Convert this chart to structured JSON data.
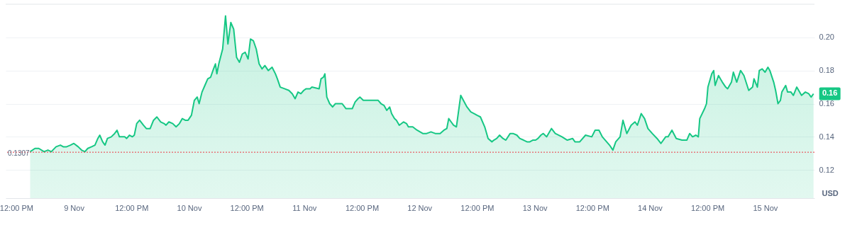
{
  "chart_data": {
    "type": "area",
    "ylabel": "USD",
    "grid": "y",
    "xlim": [
      "--11-08T09:48",
      "--11-15T10:18"
    ],
    "ylim": [
      0.103,
      0.22
    ],
    "xticks": [
      {
        "value": "--11-08T12:00",
        "label": "12:00 PM"
      },
      {
        "value": "--11-09",
        "label": "9 Nov"
      },
      {
        "value": "--11-09T12:00",
        "label": "12:00 PM"
      },
      {
        "value": "--11-10",
        "label": "10 Nov"
      },
      {
        "value": "--11-10T12:00",
        "label": "12:00 PM"
      },
      {
        "value": "--11-11",
        "label": "11 Nov"
      },
      {
        "value": "--11-11T12:00",
        "label": "12:00 PM"
      },
      {
        "value": "--11-12",
        "label": "12 Nov"
      },
      {
        "value": "--11-12T12:00",
        "label": "12:00 PM"
      },
      {
        "value": "--11-13",
        "label": "13 Nov"
      },
      {
        "value": "--11-13T12:00",
        "label": "12:00 PM"
      },
      {
        "value": "--11-14",
        "label": "14 Nov"
      },
      {
        "value": "--11-14T12:00",
        "label": "12:00 PM"
      },
      {
        "value": "--11-15",
        "label": "15 Nov"
      }
    ],
    "yticks": [
      0.12,
      0.14,
      0.16,
      0.18,
      {
        "value": 0.2,
        "label": "0.20"
      }
    ],
    "ref_lines": [
      {
        "axis": "y",
        "value": 0.1307,
        "label": "0.1307",
        "color": "#ea3943",
        "line_style": "dotted"
      }
    ],
    "annotations": [
      {
        "text": "0.16",
        "x": "--11-15T10:06",
        "y": 0.166
      }
    ],
    "series": [
      {
        "color": "#16c784",
        "x": [
          "--11-08T14:54",
          "--11-08T15:54",
          "--11-08T16:42",
          "--11-08T17:48",
          "--11-08T18:36",
          "--11-08T19:18",
          "--11-08T20:18",
          "--11-08T21:12",
          "--11-08T21:48",
          "--11-08T22:30",
          "--11-08T23:18",
          "--11-09T00:00",
          "--11-09T00:54",
          "--11-09T01:36",
          "--11-09T02:18",
          "--11-09T02:54",
          "--11-09T03:42",
          "--11-09T04:24",
          "--11-09T05:00",
          "--11-09T05:24",
          "--11-09T06:00",
          "--11-09T06:30",
          "--11-09T07:00",
          "--11-09T07:48",
          "--11-09T08:30",
          "--11-09T09:00",
          "--11-09T09:30",
          "--11-09T10:36",
          "--11-09T11:00",
          "--11-09T11:36",
          "--11-09T12:12",
          "--11-09T12:36",
          "--11-09T13:06",
          "--11-09T13:42",
          "--11-09T14:30",
          "--11-09T15:06",
          "--11-09T15:54",
          "--11-09T16:36",
          "--11-09T17:18",
          "--11-09T18:06",
          "--11-09T18:48",
          "--11-09T19:12",
          "--11-09T19:48",
          "--11-09T20:36",
          "--11-09T21:18",
          "--11-09T22:00",
          "--11-09T22:36",
          "--11-09T23:12",
          "--11-09T23:48",
          "--11-10T00:30",
          "--11-10T01:06",
          "--11-10T01:42",
          "--11-10T02:06",
          "--11-10T02:42",
          "--11-10T03:18",
          "--11-10T03:54",
          "--11-10T04:30",
          "--11-10T05:06",
          "--11-10T05:30",
          "--11-10T05:48",
          "--11-10T06:12",
          "--11-10T07:00",
          "--11-10T07:36",
          "--11-10T08:06",
          "--11-10T08:42",
          "--11-10T09:18",
          "--11-10T09:54",
          "--11-10T10:30",
          "--11-10T11:06",
          "--11-10T11:42",
          "--11-10T12:18",
          "--11-10T12:48",
          "--11-10T13:24",
          "--11-10T14:00",
          "--11-10T14:36",
          "--11-10T15:12",
          "--11-10T15:48",
          "--11-10T16:30",
          "--11-10T17:18",
          "--11-10T18:00",
          "--11-10T18:24",
          "--11-10T19:00",
          "--11-10T19:54",
          "--11-10T20:48",
          "--11-10T21:30",
          "--11-10T22:06",
          "--11-10T22:42",
          "--11-10T23:18",
          "--11-10T23:54",
          "--11-11T00:24",
          "--11-11T01:12",
          "--11-11T01:36",
          "--11-11T03:06",
          "--11-11T03:30",
          "--11-11T04:00",
          "--11-11T04:18",
          "--11-11T04:42",
          "--11-11T05:18",
          "--11-11T05:54",
          "--11-11T06:30",
          "--11-11T07:12",
          "--11-11T07:54",
          "--11-11T08:42",
          "--11-11T09:24",
          "--11-11T10:00",
          "--11-11T10:36",
          "--11-11T11:12",
          "--11-11T11:36",
          "--11-11T12:18",
          "--11-11T13:12",
          "--11-11T14:06",
          "--11-11T14:48",
          "--11-11T15:24",
          "--11-11T16:00",
          "--11-11T16:36",
          "--11-11T17:12",
          "--11-11T17:48",
          "--11-11T18:12",
          "--11-11T18:48",
          "--11-11T19:12",
          "--11-11T19:48",
          "--11-11T20:42",
          "--11-11T21:18",
          "--11-11T21:42",
          "--11-11T22:36",
          "--11-11T23:30",
          "--11-12T00:42",
          "--11-12T01:30",
          "--11-12T02:24",
          "--11-12T03:18",
          "--11-12T04:18",
          "--11-12T05:06",
          "--11-12T05:42",
          "--11-12T06:06",
          "--11-12T06:36",
          "--11-12T07:06",
          "--11-12T07:42",
          "--11-12T08:36",
          "--11-12T09:54",
          "--11-12T10:42",
          "--11-12T11:24",
          "--11-12T12:00",
          "--11-12T12:42",
          "--11-12T13:36",
          "--11-12T14:18",
          "--11-12T15:06",
          "--11-12T15:30",
          "--11-12T16:06",
          "--11-12T16:42",
          "--11-12T17:24",
          "--11-12T18:00",
          "--11-12T18:54",
          "--11-12T19:30",
          "--11-12T20:18",
          "--11-12T20:54",
          "--11-12T21:42",
          "--11-12T22:24",
          "--11-12T23:00",
          "--11-12T23:36",
          "--11-13T00:12",
          "--11-13T00:42",
          "--11-13T01:18",
          "--11-13T01:48",
          "--11-13T02:30",
          "--11-13T03:30",
          "--11-13T04:18",
          "--11-13T05:42",
          "--11-13T06:48",
          "--11-13T07:54",
          "--11-13T08:24",
          "--11-13T09:24",
          "--11-13T10:36",
          "--11-13T11:54",
          "--11-13T12:36",
          "--11-13T13:24",
          "--11-13T14:06",
          "--11-13T15:36",
          "--11-13T16:18",
          "--11-13T16:54",
          "--11-13T17:48",
          "--11-13T18:24",
          "--11-13T19:12",
          "--11-13T20:06",
          "--11-13T20:54",
          "--11-13T21:24",
          "--11-13T22:12",
          "--11-13T22:54",
          "--11-13T23:36",
          "--11-14T00:30",
          "--11-14T01:30",
          "--11-14T02:18",
          "--11-14T03:18",
          "--11-14T03:48",
          "--11-14T04:36",
          "--11-14T05:30",
          "--11-14T06:42",
          "--11-14T07:42",
          "--11-14T08:18",
          "--11-14T08:54",
          "--11-14T09:36",
          "--11-14T10:06",
          "--11-14T10:24",
          "--11-14T11:24",
          "--11-14T11:48",
          "--11-14T12:06",
          "--11-14T12:54",
          "--11-14T13:18",
          "--11-14T13:36",
          "--11-14T14:18",
          "--11-14T15:06",
          "--11-14T15:48",
          "--11-14T16:12",
          "--11-14T17:00",
          "--11-14T17:24",
          "--11-14T18:06",
          "--11-14T18:54",
          "--11-14T19:36",
          "--11-14T20:36",
          "--11-14T21:24",
          "--11-14T21:42",
          "--11-14T22:24",
          "--11-14T22:48",
          "--11-14T23:24",
          "--11-15T00:00",
          "--11-15T00:36",
          "--11-15T01:00",
          "--11-15T01:48",
          "--11-15T02:12",
          "--11-15T02:42",
          "--11-15T03:12",
          "--11-15T03:30",
          "--11-15T04:18",
          "--11-15T04:42",
          "--11-15T05:24",
          "--11-15T05:54",
          "--11-15T06:36",
          "--11-15T07:36",
          "--11-15T08:24",
          "--11-15T09:06",
          "--11-15T09:36",
          "--11-15T10:06"
        ],
        "values": [
          0.131,
          0.133,
          0.133,
          0.131,
          0.132,
          0.131,
          0.134,
          0.135,
          0.134,
          0.134,
          0.135,
          0.136,
          0.134,
          0.132,
          0.131,
          0.133,
          0.134,
          0.135,
          0.139,
          0.141,
          0.137,
          0.135,
          0.139,
          0.14,
          0.142,
          0.144,
          0.14,
          0.14,
          0.139,
          0.141,
          0.14,
          0.141,
          0.148,
          0.15,
          0.147,
          0.145,
          0.145,
          0.15,
          0.152,
          0.149,
          0.148,
          0.147,
          0.149,
          0.148,
          0.146,
          0.148,
          0.151,
          0.15,
          0.15,
          0.153,
          0.162,
          0.164,
          0.16,
          0.167,
          0.171,
          0.175,
          0.176,
          0.181,
          0.184,
          0.178,
          0.184,
          0.193,
          0.213,
          0.196,
          0.209,
          0.205,
          0.188,
          0.185,
          0.19,
          0.191,
          0.187,
          0.199,
          0.198,
          0.193,
          0.184,
          0.181,
          0.183,
          0.18,
          0.182,
          0.178,
          0.175,
          0.17,
          0.169,
          0.168,
          0.166,
          0.163,
          0.167,
          0.166,
          0.168,
          0.169,
          0.169,
          0.17,
          0.169,
          0.175,
          0.176,
          0.178,
          0.164,
          0.16,
          0.158,
          0.16,
          0.16,
          0.16,
          0.157,
          0.157,
          0.157,
          0.161,
          0.163,
          0.164,
          0.162,
          0.162,
          0.162,
          0.162,
          0.162,
          0.16,
          0.159,
          0.156,
          0.158,
          0.154,
          0.151,
          0.15,
          0.147,
          0.149,
          0.148,
          0.146,
          0.146,
          0.144,
          0.142,
          0.142,
          0.143,
          0.142,
          0.142,
          0.144,
          0.145,
          0.151,
          0.149,
          0.147,
          0.146,
          0.165,
          0.158,
          0.155,
          0.154,
          0.153,
          0.152,
          0.146,
          0.139,
          0.137,
          0.138,
          0.139,
          0.141,
          0.139,
          0.138,
          0.142,
          0.142,
          0.141,
          0.139,
          0.138,
          0.137,
          0.137,
          0.138,
          0.138,
          0.139,
          0.141,
          0.142,
          0.14,
          0.145,
          0.142,
          0.14,
          0.138,
          0.139,
          0.137,
          0.137,
          0.141,
          0.14,
          0.144,
          0.144,
          0.14,
          0.135,
          0.132,
          0.137,
          0.14,
          0.15,
          0.142,
          0.147,
          0.149,
          0.147,
          0.154,
          0.151,
          0.145,
          0.142,
          0.139,
          0.136,
          0.14,
          0.14,
          0.144,
          0.139,
          0.138,
          0.138,
          0.142,
          0.14,
          0.141,
          0.14,
          0.151,
          0.157,
          0.16,
          0.17,
          0.178,
          0.18,
          0.171,
          0.177,
          0.173,
          0.17,
          0.169,
          0.173,
          0.179,
          0.173,
          0.18,
          0.177,
          0.168,
          0.17,
          0.175,
          0.17,
          0.18,
          0.181,
          0.179,
          0.182,
          0.18,
          0.173,
          0.168,
          0.16,
          0.162,
          0.167,
          0.171,
          0.167,
          0.167,
          0.165,
          0.17,
          0.165,
          0.167,
          0.166,
          0.164,
          0.166
        ]
      }
    ]
  }
}
